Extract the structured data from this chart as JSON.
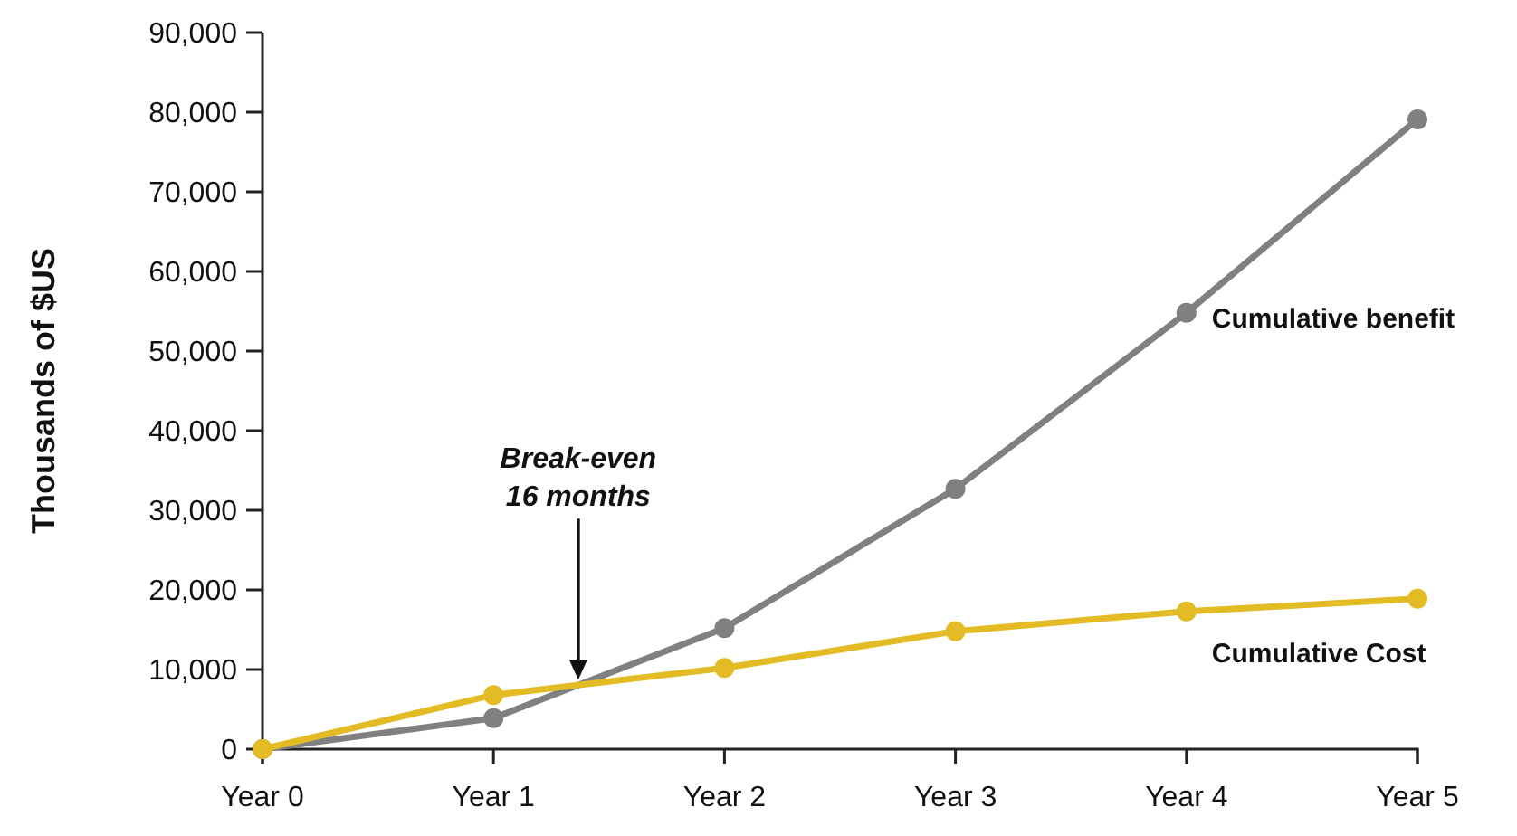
{
  "chart_data": {
    "type": "line",
    "ylabel": "Thousands of $US",
    "categories": [
      "Year 0",
      "Year 1",
      "Year 2",
      "Year 3",
      "Year 4",
      "Year 5"
    ],
    "series": [
      {
        "name": "Cumulative benefit",
        "color": "#808080",
        "values": [
          0,
          3900,
          15200,
          32700,
          54800,
          79100
        ]
      },
      {
        "name": "Cumulative Cost",
        "color": "#e3bb25",
        "values": [
          0,
          6800,
          10200,
          14800,
          17300,
          18900
        ]
      }
    ],
    "ylim": [
      0,
      90000
    ],
    "yticks": [
      {
        "value": 0,
        "label": "0"
      },
      {
        "value": 10000,
        "label": "10,000"
      },
      {
        "value": 20000,
        "label": "20,000"
      },
      {
        "value": 30000,
        "label": "30,000"
      },
      {
        "value": 40000,
        "label": "40,000"
      },
      {
        "value": 50000,
        "label": "50,000"
      },
      {
        "value": 60000,
        "label": "60,000"
      },
      {
        "value": 70000,
        "label": "70,000"
      },
      {
        "value": 80000,
        "label": "80,000"
      },
      {
        "value": 90000,
        "label": "90,000"
      }
    ],
    "annotations": [
      "Break-even\n16 months"
    ],
    "marker": "circle",
    "line_style": "solid",
    "grid": false
  }
}
